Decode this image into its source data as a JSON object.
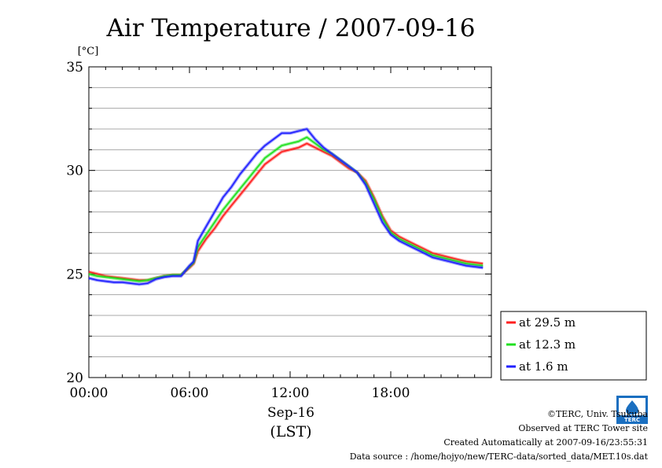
{
  "chart_data": {
    "type": "line",
    "title": "Air Temperature / 2007-09-16",
    "ylabel": "[°C]",
    "xlabel_date": "Sep-16",
    "xlabel_unit": "(LST)",
    "x_ticks": [
      "00:00",
      "06:00",
      "12:00",
      "18:00"
    ],
    "y_ticks": [
      "20",
      "25",
      "30",
      "35"
    ],
    "ylim": [
      20,
      35
    ],
    "xlim": [
      0,
      24
    ],
    "grid": true,
    "legend_placement": "right",
    "series": [
      {
        "name": "at 29.5 m",
        "color": "#ff2020",
        "x": [
          0,
          0.5,
          1,
          1.5,
          2,
          2.5,
          3,
          3.5,
          4,
          4.5,
          5,
          5.5,
          6,
          6.25,
          6.5,
          7,
          7.5,
          8,
          8.5,
          9,
          9.5,
          10,
          10.5,
          11,
          11.5,
          12,
          12.5,
          13,
          13.5,
          14,
          14.5,
          15,
          15.5,
          16,
          16.5,
          17,
          17.5,
          18,
          18.5,
          19,
          19.5,
          20,
          20.5,
          21,
          21.5,
          22,
          22.5,
          23,
          23.5
        ],
        "values": [
          25.1,
          25.0,
          24.9,
          24.85,
          24.8,
          24.75,
          24.7,
          24.7,
          24.8,
          24.9,
          24.95,
          24.95,
          25.3,
          25.5,
          26.1,
          26.7,
          27.2,
          27.8,
          28.3,
          28.8,
          29.3,
          29.8,
          30.3,
          30.6,
          30.9,
          31.0,
          31.1,
          31.3,
          31.1,
          30.9,
          30.7,
          30.4,
          30.1,
          29.9,
          29.5,
          28.7,
          27.8,
          27.1,
          26.8,
          26.6,
          26.4,
          26.2,
          26.0,
          25.9,
          25.8,
          25.7,
          25.6,
          25.55,
          25.5
        ]
      },
      {
        "name": "at 12.3 m",
        "color": "#20e020",
        "x": [
          0,
          0.5,
          1,
          1.5,
          2,
          2.5,
          3,
          3.5,
          4,
          4.5,
          5,
          5.5,
          6,
          6.25,
          6.5,
          7,
          7.5,
          8,
          8.5,
          9,
          9.5,
          10,
          10.5,
          11,
          11.5,
          12,
          12.5,
          13,
          13.5,
          14,
          14.5,
          15,
          15.5,
          16,
          16.5,
          17,
          17.5,
          18,
          18.5,
          19,
          19.5,
          20,
          20.5,
          21,
          21.5,
          22,
          22.5,
          23,
          23.5
        ],
        "values": [
          25.0,
          24.9,
          24.85,
          24.8,
          24.75,
          24.7,
          24.65,
          24.7,
          24.8,
          24.9,
          24.95,
          24.95,
          25.35,
          25.55,
          26.3,
          26.9,
          27.5,
          28.1,
          28.6,
          29.1,
          29.6,
          30.1,
          30.6,
          30.9,
          31.2,
          31.3,
          31.4,
          31.6,
          31.3,
          31.0,
          30.8,
          30.5,
          30.2,
          29.9,
          29.4,
          28.6,
          27.7,
          27.0,
          26.7,
          26.5,
          26.3,
          26.1,
          25.9,
          25.8,
          25.7,
          25.6,
          25.5,
          25.45,
          25.4
        ]
      },
      {
        "name": "at 1.6 m",
        "color": "#2020ff",
        "x": [
          0,
          0.5,
          1,
          1.5,
          2,
          2.5,
          3,
          3.5,
          4,
          4.5,
          5,
          5.5,
          6,
          6.25,
          6.5,
          7,
          7.5,
          8,
          8.5,
          9,
          9.5,
          10,
          10.5,
          11,
          11.5,
          12,
          12.5,
          13,
          13.5,
          14,
          14.5,
          15,
          15.5,
          16,
          16.5,
          17,
          17.5,
          18,
          18.5,
          19,
          19.5,
          20,
          20.5,
          21,
          21.5,
          22,
          22.5,
          23,
          23.5
        ],
        "values": [
          24.8,
          24.7,
          24.65,
          24.6,
          24.6,
          24.55,
          24.5,
          24.55,
          24.75,
          24.85,
          24.9,
          24.9,
          25.4,
          25.6,
          26.6,
          27.3,
          28.0,
          28.7,
          29.2,
          29.8,
          30.3,
          30.8,
          31.2,
          31.5,
          31.8,
          31.8,
          31.9,
          32.0,
          31.5,
          31.1,
          30.8,
          30.5,
          30.2,
          29.9,
          29.3,
          28.4,
          27.5,
          26.9,
          26.6,
          26.4,
          26.2,
          26.0,
          25.8,
          25.7,
          25.6,
          25.5,
          25.4,
          25.35,
          25.3
        ]
      }
    ]
  },
  "credits": {
    "copyright": "©TERC, Univ. Tsukuba",
    "site": "Observed at TERC Tower site",
    "created": "Created Automatically at 2007-09-16/23:55:31",
    "source": "Data source : /home/hojyo/new/TERC-data/sorted_data/MET.10s.dat",
    "logo_text": "TERC"
  }
}
